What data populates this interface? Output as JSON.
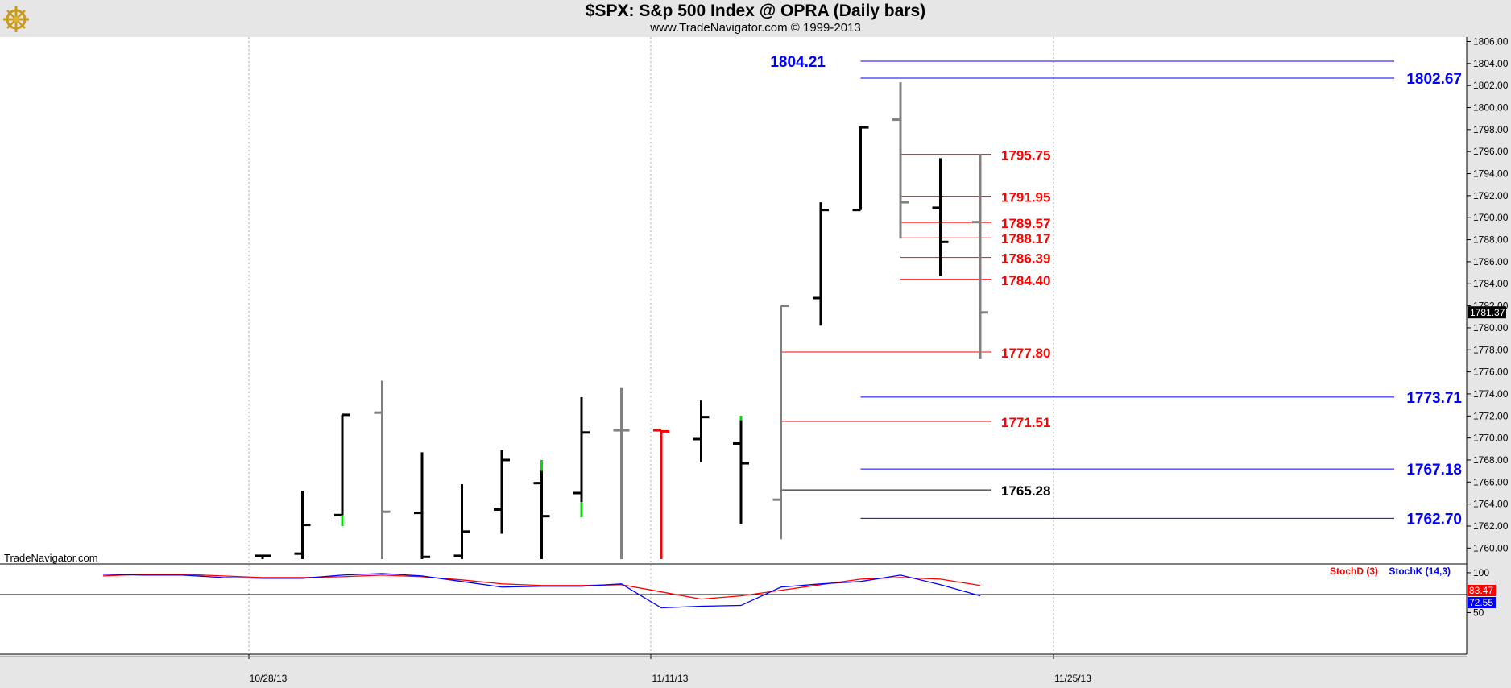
{
  "header": {
    "title": "$SPX:  S&p 500 Index @ OPRA  (Daily bars)",
    "subtitle": "www.TradeNavigator.com © 1999-2013",
    "watermark": "TradeNavigator.com",
    "logo_icon": "ship-wheel-logo-icon"
  },
  "colors": {
    "black": "#000000",
    "gray": "#808080",
    "red": "#ff0000",
    "green": "#00dd00",
    "blue": "#0000ff",
    "panel_bg": "#e6e6e6"
  },
  "chart_data": [
    {
      "type": "ohlc",
      "ylim": [
        1759.0,
        1806.0
      ],
      "y_ticks": [
        "1806.00",
        "1804.00",
        "1802.00",
        "1800.00",
        "1798.00",
        "1796.00",
        "1794.00",
        "1792.00",
        "1790.00",
        "1788.00",
        "1786.00",
        "1784.00",
        "1782.00",
        "1780.00",
        "1778.00",
        "1776.00",
        "1774.00",
        "1772.00",
        "1770.00",
        "1768.00",
        "1766.00",
        "1764.00",
        "1762.00",
        "1760.00"
      ],
      "x_ticks": [
        "10/28/13",
        "11/11/13",
        "11/25/13"
      ],
      "last_price": "1781.37",
      "bars": [
        {
          "o": 1759.3,
          "h": 1759.3,
          "l": 1759.0,
          "c": 1759.3,
          "color": "black"
        },
        {
          "o": 1759.5,
          "h": 1765.2,
          "l": 1759.0,
          "c": 1762.1,
          "color": "black"
        },
        {
          "o": 1763.0,
          "h": 1772.1,
          "l": 1762.0,
          "c": 1772.1,
          "color": "black"
        },
        {
          "o": 1772.3,
          "h": 1775.2,
          "l": 1759.0,
          "c": 1763.3,
          "color": "gray"
        },
        {
          "o": 1763.2,
          "h": 1768.7,
          "l": 1759.0,
          "c": 1759.2,
          "color": "black"
        },
        {
          "o": 1759.3,
          "h": 1765.8,
          "l": 1759.0,
          "c": 1761.5,
          "color": "black"
        },
        {
          "o": 1763.5,
          "h": 1768.9,
          "l": 1761.3,
          "c": 1768.0,
          "color": "black"
        },
        {
          "o": 1765.9,
          "h": 1768.0,
          "l": 1759.0,
          "c": 1762.9,
          "color": "black"
        },
        {
          "o": 1765.0,
          "h": 1773.7,
          "l": 1762.8,
          "c": 1770.5,
          "color": "black"
        },
        {
          "o": 1770.7,
          "h": 1774.6,
          "l": 1759.0,
          "c": 1770.7,
          "color": "gray"
        },
        {
          "o": 1770.7,
          "h": 1770.7,
          "l": 1759.0,
          "c": 1770.6,
          "color": "red"
        },
        {
          "o": 1769.9,
          "h": 1773.4,
          "l": 1767.8,
          "c": 1771.9,
          "color": "black"
        },
        {
          "o": 1769.5,
          "h": 1772.0,
          "l": 1762.2,
          "c": 1767.7,
          "color": "black"
        },
        {
          "o": 1764.4,
          "h": 1782.0,
          "l": 1760.8,
          "c": 1782.0,
          "color": "gray"
        },
        {
          "o": 1782.7,
          "h": 1791.4,
          "l": 1780.2,
          "c": 1790.7,
          "color": "black"
        },
        {
          "o": 1790.7,
          "h": 1798.3,
          "l": 1790.7,
          "c": 1798.2,
          "color": "black"
        },
        {
          "o": 1798.9,
          "h": 1802.3,
          "l": 1788.1,
          "c": 1791.4,
          "color": "gray"
        },
        {
          "o": 1790.9,
          "h": 1795.4,
          "l": 1784.7,
          "c": 1787.8,
          "color": "black"
        },
        {
          "o": 1789.6,
          "h": 1795.8,
          "l": 1777.2,
          "c": 1781.4,
          "color": "gray"
        }
      ],
      "green_marks": [
        {
          "bar": 2,
          "from": 1762.0,
          "to": 1763.0
        },
        {
          "bar": 7,
          "from": 1767.0,
          "to": 1768.0
        },
        {
          "bar": 8,
          "from": 1762.8,
          "to": 1764.2
        },
        {
          "bar": 12,
          "from": 1771.6,
          "to": 1772.0
        }
      ],
      "levels": [
        {
          "value": "1804.21",
          "color": "blue",
          "from_bar": 15,
          "label_side": "left"
        },
        {
          "value": "1802.67",
          "color": "blue",
          "from_bar": 15,
          "label_side": "right"
        },
        {
          "value": "1795.75",
          "color": "red",
          "from_bar": 16,
          "label_side": "mid"
        },
        {
          "value": "1791.95",
          "color": "red",
          "from_bar": 16,
          "label_side": "mid"
        },
        {
          "value": "1789.57",
          "color": "red",
          "from_bar": 16,
          "label_side": "mid"
        },
        {
          "value": "1788.17",
          "color": "red",
          "from_bar": 16,
          "label_side": "mid"
        },
        {
          "value": "1786.39",
          "color": "red",
          "from_bar": 16,
          "label_side": "mid"
        },
        {
          "value": "1784.40",
          "color": "red",
          "from_bar": 16,
          "label_side": "mid"
        },
        {
          "value": "1777.80",
          "color": "red",
          "from_bar": 13,
          "label_side": "mid"
        },
        {
          "value": "1773.71",
          "color": "blue",
          "from_bar": 15,
          "label_side": "right"
        },
        {
          "value": "1771.51",
          "color": "red",
          "from_bar": 13,
          "label_side": "mid"
        },
        {
          "value": "1767.18",
          "color": "blue",
          "from_bar": 15,
          "label_side": "right"
        },
        {
          "value": "1765.28",
          "color": "black",
          "from_bar": 13,
          "label_side": "mid"
        },
        {
          "value": "1762.70",
          "color": "blue",
          "from_bar": 15,
          "label_side": "right"
        }
      ]
    },
    {
      "type": "line",
      "ylim": [
        0,
        110
      ],
      "y_ticks": [
        "100",
        "50"
      ],
      "legend": [
        "StochD (3)",
        "StochK (14,3)"
      ],
      "series": [
        {
          "name": "StochD (3)",
          "color": "red",
          "last_label": "83.47",
          "points": [
            [
              -4,
              96
            ],
            [
              -3,
              98
            ],
            [
              -2,
              98
            ],
            [
              -1,
              96
            ],
            [
              0,
              94
            ],
            [
              1,
              94
            ],
            [
              2,
              95
            ],
            [
              3,
              97
            ],
            [
              4,
              95
            ],
            [
              5,
              91
            ],
            [
              6,
              86
            ],
            [
              7,
              84
            ],
            [
              8,
              84
            ],
            [
              9,
              85
            ],
            [
              10,
              76
            ],
            [
              11,
              67
            ],
            [
              12,
              71
            ],
            [
              13,
              78
            ],
            [
              14,
              85
            ],
            [
              15,
              92
            ],
            [
              16,
              94
            ],
            [
              17,
              92
            ],
            [
              18,
              84
            ]
          ]
        },
        {
          "name": "StochK (14,3)",
          "color": "blue",
          "last_label": "72.55",
          "points": [
            [
              -4,
              98
            ],
            [
              -3,
              97
            ],
            [
              -2,
              97
            ],
            [
              -1,
              94
            ],
            [
              0,
              93
            ],
            [
              1,
              93
            ],
            [
              2,
              97
            ],
            [
              3,
              99
            ],
            [
              4,
              96
            ],
            [
              5,
              89
            ],
            [
              6,
              82
            ],
            [
              7,
              83
            ],
            [
              8,
              83
            ],
            [
              9,
              86
            ],
            [
              10,
              56
            ],
            [
              11,
              58
            ],
            [
              12,
              59
            ],
            [
              13,
              82
            ],
            [
              14,
              86
            ],
            [
              15,
              89
            ],
            [
              16,
              97
            ],
            [
              17,
              85
            ],
            [
              18,
              71
            ]
          ]
        }
      ]
    }
  ]
}
